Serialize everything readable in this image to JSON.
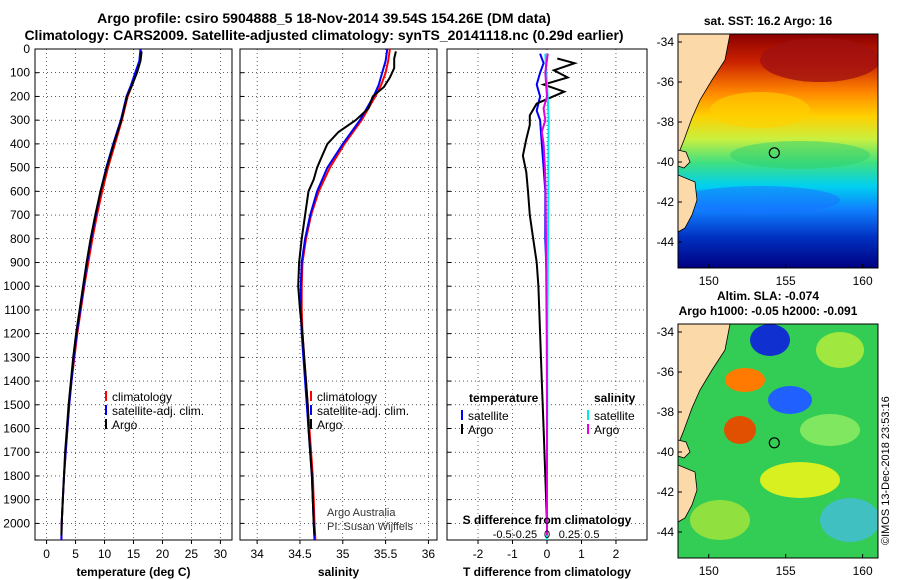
{
  "title": {
    "line1": "Argo profile: csiro 5904888_5 18-Nov-2014 39.54S 154.26E (DM data)",
    "line2": "Climatology: CARS2009. Satellite-adjusted climatology: synTS_20141118.nc (0.29d earlier)"
  },
  "colors": {
    "climatology": "#ff0000",
    "satellite": "#0000ff",
    "argo": "#000000",
    "salinity_satellite": "#00e5ee",
    "salinity_argo": "#e000e0"
  },
  "credit": {
    "line1": "Argo Australia",
    "line2": "PI: Susan Wijffels"
  },
  "watermark": "©IMOS 13-Dec-2018 23:53:16",
  "maps": {
    "sst": {
      "title": "sat. SST: 16.2 Argo: 16"
    },
    "sla": {
      "title1": "Altim. SLA: -0.074",
      "title2": "Argo h1000: -0.05 h2000: -0.091"
    },
    "lat_ticks": [
      -34,
      -36,
      -38,
      -40,
      -42,
      -44
    ],
    "lat_labels": [
      "-34",
      "-36",
      "-38",
      "-40",
      "-42",
      "-44"
    ],
    "lon_ticks": [
      150,
      155,
      160
    ],
    "lon_labels": [
      "150",
      "155",
      "160"
    ],
    "lat_range": [
      -45.3,
      -33.6
    ],
    "lon_range": [
      148,
      161
    ],
    "float_position": {
      "lat": -39.54,
      "lon": 154.26
    }
  },
  "chart_data": [
    {
      "type": "line",
      "name": "temperature",
      "xlabel": "temperature (deg C)",
      "ylabel": "",
      "xlim": [
        -2,
        32
      ],
      "ylim": [
        2070,
        0
      ],
      "xticks": [
        0,
        5,
        10,
        15,
        20,
        25,
        30
      ],
      "xtick_labels": [
        "0",
        "5",
        "10",
        "15",
        "20",
        "25",
        "30"
      ],
      "yticks": [
        0,
        100,
        200,
        300,
        400,
        500,
        600,
        700,
        800,
        900,
        1000,
        1100,
        1200,
        1300,
        1400,
        1500,
        1600,
        1700,
        1800,
        1900,
        2000
      ],
      "ytick_labels": [
        "0",
        "100",
        "200",
        "300",
        "400",
        "500",
        "600",
        "700",
        "800",
        "900",
        "1000",
        "1100",
        "1200",
        "1300",
        "1400",
        "1500",
        "1600",
        "1700",
        "1800",
        "1900",
        "2000"
      ],
      "legend": {
        "position": "center-right",
        "labels": [
          "climatology",
          "satellite-adj. clim.",
          "Argo"
        ]
      },
      "series": [
        {
          "name": "climatology",
          "color": "#ff0000",
          "points": [
            [
              16.3,
              0
            ],
            [
              16.1,
              50
            ],
            [
              15.5,
              100
            ],
            [
              14.8,
              150
            ],
            [
              14.0,
              200
            ],
            [
              13.0,
              300
            ],
            [
              11.8,
              400
            ],
            [
              10.6,
              500
            ],
            [
              9.6,
              600
            ],
            [
              8.7,
              700
            ],
            [
              7.9,
              800
            ],
            [
              7.2,
              900
            ],
            [
              6.5,
              1000
            ],
            [
              5.9,
              1100
            ],
            [
              5.3,
              1200
            ],
            [
              4.8,
              1300
            ],
            [
              4.3,
              1400
            ],
            [
              3.9,
              1500
            ],
            [
              3.6,
              1600
            ],
            [
              3.3,
              1700
            ],
            [
              3.0,
              1800
            ],
            [
              2.8,
              1900
            ],
            [
              2.6,
              2000
            ],
            [
              2.55,
              2070
            ]
          ]
        },
        {
          "name": "satellite-adj. clim.",
          "color": "#0000ff",
          "points": [
            [
              16.2,
              0
            ],
            [
              16.0,
              50
            ],
            [
              15.3,
              100
            ],
            [
              14.6,
              150
            ],
            [
              13.8,
              200
            ],
            [
              12.8,
              300
            ],
            [
              11.5,
              400
            ],
            [
              10.3,
              500
            ],
            [
              9.3,
              600
            ],
            [
              8.5,
              700
            ],
            [
              7.7,
              800
            ],
            [
              7.0,
              900
            ],
            [
              6.4,
              1000
            ],
            [
              5.8,
              1100
            ],
            [
              5.2,
              1200
            ],
            [
              4.7,
              1300
            ],
            [
              4.3,
              1400
            ],
            [
              3.9,
              1500
            ],
            [
              3.6,
              1600
            ],
            [
              3.3,
              1700
            ],
            [
              3.0,
              1800
            ],
            [
              2.8,
              1900
            ],
            [
              2.6,
              2000
            ],
            [
              2.55,
              2070
            ]
          ]
        },
        {
          "name": "Argo",
          "color": "#000000",
          "points": [
            [
              16.4,
              10
            ],
            [
              16.2,
              50
            ],
            [
              15.6,
              100
            ],
            [
              14.8,
              150
            ],
            [
              13.9,
              200
            ],
            [
              12.9,
              300
            ],
            [
              11.6,
              400
            ],
            [
              10.4,
              500
            ],
            [
              9.3,
              600
            ],
            [
              8.4,
              700
            ],
            [
              7.6,
              800
            ],
            [
              6.9,
              900
            ],
            [
              6.3,
              1000
            ],
            [
              5.7,
              1100
            ],
            [
              5.1,
              1200
            ],
            [
              4.6,
              1300
            ],
            [
              4.2,
              1400
            ],
            [
              3.8,
              1500
            ],
            [
              3.5,
              1600
            ],
            [
              3.2,
              1700
            ],
            [
              3.0,
              1800
            ],
            [
              2.8,
              1900
            ],
            [
              2.6,
              2000
            ],
            [
              2.55,
              2050
            ]
          ]
        }
      ]
    },
    {
      "type": "line",
      "name": "salinity",
      "xlabel": "salinity",
      "xlim": [
        33.8,
        36.1
      ],
      "ylim": [
        2070,
        0
      ],
      "xticks": [
        34,
        34.5,
        35,
        35.5,
        36
      ],
      "xtick_labels": [
        "34",
        "34.5",
        "35",
        "35.5",
        "36"
      ],
      "legend": {
        "position": "center-right",
        "labels": [
          "climatology",
          "satellite-adj. clim.",
          "Argo"
        ]
      },
      "series": [
        {
          "name": "climatology",
          "color": "#ff0000",
          "points": [
            [
              35.55,
              0
            ],
            [
              35.53,
              50
            ],
            [
              35.5,
              100
            ],
            [
              35.45,
              150
            ],
            [
              35.38,
              200
            ],
            [
              35.22,
              300
            ],
            [
              35.02,
              400
            ],
            [
              34.85,
              500
            ],
            [
              34.72,
              600
            ],
            [
              34.63,
              700
            ],
            [
              34.57,
              800
            ],
            [
              34.53,
              900
            ],
            [
              34.52,
              1000
            ],
            [
              34.52,
              1100
            ],
            [
              34.53,
              1200
            ],
            [
              34.55,
              1300
            ],
            [
              34.57,
              1400
            ],
            [
              34.59,
              1500
            ],
            [
              34.61,
              1600
            ],
            [
              34.63,
              1700
            ],
            [
              34.65,
              1800
            ],
            [
              34.66,
              1900
            ],
            [
              34.67,
              2000
            ],
            [
              34.68,
              2070
            ]
          ]
        },
        {
          "name": "satellite-adj. clim.",
          "color": "#0000ff",
          "points": [
            [
              35.52,
              0
            ],
            [
              35.5,
              50
            ],
            [
              35.46,
              100
            ],
            [
              35.42,
              150
            ],
            [
              35.36,
              200
            ],
            [
              35.2,
              300
            ],
            [
              35.0,
              400
            ],
            [
              34.82,
              500
            ],
            [
              34.7,
              600
            ],
            [
              34.62,
              700
            ],
            [
              34.56,
              800
            ],
            [
              34.52,
              900
            ],
            [
              34.51,
              1000
            ],
            [
              34.51,
              1100
            ],
            [
              34.52,
              1200
            ],
            [
              34.54,
              1300
            ],
            [
              34.56,
              1400
            ],
            [
              34.58,
              1500
            ],
            [
              34.6,
              1600
            ],
            [
              34.62,
              1700
            ],
            [
              34.64,
              1800
            ],
            [
              34.65,
              1900
            ],
            [
              34.66,
              2000
            ],
            [
              34.67,
              2070
            ]
          ]
        },
        {
          "name": "Argo",
          "color": "#000000",
          "points": [
            [
              35.62,
              10
            ],
            [
              35.6,
              40
            ],
            [
              35.6,
              80
            ],
            [
              35.55,
              120
            ],
            [
              35.48,
              160
            ],
            [
              35.35,
              200
            ],
            [
              35.3,
              250
            ],
            [
              35.15,
              300
            ],
            [
              34.95,
              350
            ],
            [
              34.82,
              400
            ],
            [
              34.76,
              450
            ],
            [
              34.7,
              500
            ],
            [
              34.66,
              550
            ],
            [
              34.6,
              600
            ],
            [
              34.56,
              700
            ],
            [
              34.52,
              800
            ],
            [
              34.49,
              900
            ],
            [
              34.48,
              1000
            ],
            [
              34.5,
              1100
            ],
            [
              34.53,
              1200
            ],
            [
              34.55,
              1300
            ],
            [
              34.57,
              1400
            ],
            [
              34.59,
              1500
            ],
            [
              34.6,
              1600
            ],
            [
              34.62,
              1700
            ],
            [
              34.64,
              1800
            ],
            [
              34.65,
              1900
            ],
            [
              34.66,
              2000
            ],
            [
              34.67,
              2050
            ]
          ]
        }
      ]
    },
    {
      "type": "line",
      "name": "differences",
      "xlabel": "T difference from climatology",
      "top_axis_label": "S difference from climatology",
      "xlim": [
        -2.9,
        2.9
      ],
      "ylim": [
        2070,
        0
      ],
      "xticks": [
        -2,
        -1,
        0,
        1,
        2
      ],
      "xtick_labels": [
        "-2",
        "-1",
        "0",
        "1",
        "2"
      ],
      "sticks": [
        -0.5,
        -0.25,
        0,
        0.25,
        0.5
      ],
      "stick_labels": [
        "-0.5",
        "-0.25",
        "0",
        "0.25",
        "0.5"
      ],
      "legend_temperature": {
        "title": "temperature",
        "labels": [
          "satellite",
          "Argo"
        ]
      },
      "legend_salinity": {
        "title": "salinity",
        "labels": [
          "satellite",
          "Argo"
        ]
      },
      "series": [
        {
          "name": "T satellite",
          "color": "#0000ff",
          "points": [
            [
              -0.2,
              20
            ],
            [
              -0.1,
              60
            ],
            [
              -0.2,
              100
            ],
            [
              -0.3,
              150
            ],
            [
              -0.2,
              200
            ],
            [
              -0.3,
              260
            ],
            [
              -0.2,
              300
            ],
            [
              -0.15,
              400
            ],
            [
              -0.1,
              500
            ],
            [
              -0.05,
              600
            ],
            [
              -0.05,
              800
            ],
            [
              0,
              1000
            ],
            [
              0,
              1500
            ],
            [
              0,
              2070
            ]
          ]
        },
        {
          "name": "T Argo",
          "color": "#000000",
          "points": [
            [
              0.3,
              40
            ],
            [
              0.8,
              60
            ],
            [
              0.2,
              90
            ],
            [
              0.6,
              120
            ],
            [
              -0.1,
              150
            ],
            [
              0.5,
              180
            ],
            [
              -0.3,
              230
            ],
            [
              -0.5,
              280
            ],
            [
              -0.5,
              320
            ],
            [
              -0.6,
              380
            ],
            [
              -0.7,
              450
            ],
            [
              -0.6,
              520
            ],
            [
              -0.55,
              600
            ],
            [
              -0.5,
              700
            ],
            [
              -0.4,
              800
            ],
            [
              -0.3,
              900
            ],
            [
              -0.25,
              1000
            ],
            [
              -0.2,
              1200
            ],
            [
              -0.15,
              1400
            ],
            [
              -0.1,
              1600
            ],
            [
              -0.05,
              1800
            ],
            [
              0,
              2000
            ],
            [
              0,
              2050
            ]
          ]
        },
        {
          "name": "S satellite",
          "color": "#00e5ee",
          "points": [
            [
              -0.05,
              20
            ],
            [
              -0.02,
              100
            ],
            [
              0.02,
              200
            ],
            [
              0.05,
              300
            ],
            [
              0.04,
              400
            ],
            [
              0.04,
              600
            ],
            [
              0.03,
              800
            ],
            [
              0.02,
              1000
            ],
            [
              0.01,
              1200
            ],
            [
              0.01,
              1500
            ],
            [
              0.0,
              1800
            ],
            [
              0.0,
              2070
            ]
          ]
        },
        {
          "name": "S Argo",
          "color": "#e000e0",
          "points": [
            [
              0.02,
              20
            ],
            [
              -0.05,
              100
            ],
            [
              0.0,
              200
            ],
            [
              -0.1,
              250
            ],
            [
              -0.05,
              300
            ],
            [
              -0.15,
              350
            ],
            [
              -0.1,
              400
            ],
            [
              -0.06,
              500
            ],
            [
              -0.04,
              600
            ],
            [
              -0.03,
              800
            ],
            [
              -0.02,
              1000
            ],
            [
              -0.01,
              1200
            ],
            [
              0.0,
              1500
            ],
            [
              0.0,
              1800
            ],
            [
              0.0,
              2050
            ]
          ]
        }
      ]
    }
  ]
}
